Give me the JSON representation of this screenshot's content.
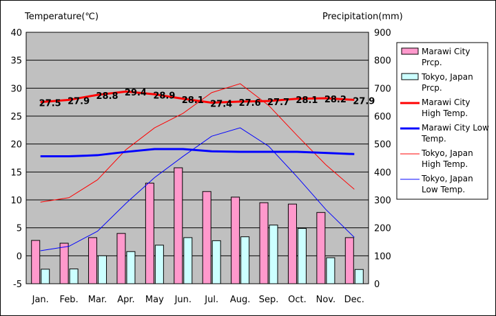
{
  "chart_data": {
    "type": "bar",
    "categories": [
      "Jan.",
      "Feb.",
      "Mar.",
      "Apr.",
      "May",
      "Jun.",
      "Jul.",
      "Aug.",
      "Sep.",
      "Oct.",
      "Nov.",
      "Dec."
    ],
    "y_left": {
      "label": "Temperature(℃)",
      "range": [
        -5,
        40
      ],
      "ticks": [
        "40",
        "35",
        "30",
        "25",
        "20",
        "15",
        "10",
        "5",
        "0",
        "-5"
      ]
    },
    "y_right": {
      "label": "Precipitation(mm)",
      "range": [
        0,
        900
      ],
      "ticks": [
        "900",
        "800",
        "700",
        "600",
        "500",
        "400",
        "300",
        "200",
        "100",
        "0"
      ]
    },
    "grid": true,
    "legend_position": "right",
    "series": [
      {
        "name": "Marawi City Prcp.",
        "kind": "bar",
        "axis": "right",
        "color": "#ff99cc",
        "values": [
          155,
          145,
          165,
          180,
          360,
          415,
          330,
          310,
          290,
          285,
          255,
          165
        ]
      },
      {
        "name": "Tokyo, Japan Prcp.",
        "kind": "bar",
        "axis": "right",
        "color": "#ccffff",
        "values": [
          52,
          53,
          100,
          115,
          138,
          165,
          154,
          168,
          210,
          198,
          93,
          51
        ]
      },
      {
        "name": "Marawi City High Temp.",
        "kind": "line",
        "axis": "left",
        "color": "#ff0000",
        "width": 3,
        "values": [
          27.5,
          27.9,
          28.8,
          29.4,
          28.9,
          28.1,
          27.4,
          27.6,
          27.7,
          28.1,
          28.2,
          27.9
        ],
        "labels": [
          "27.5",
          "27.9",
          "28.8",
          "29.4",
          "28.9",
          "28.1",
          "27.4",
          "27.6",
          "27.7",
          "28.1",
          "28.2",
          "27.9"
        ]
      },
      {
        "name": "Marawi City Low Temp.",
        "kind": "line",
        "axis": "left",
        "color": "#0000ff",
        "width": 3,
        "values": [
          17.8,
          17.8,
          18.0,
          18.6,
          19.1,
          19.1,
          18.7,
          18.6,
          18.6,
          18.6,
          18.4,
          18.2
        ]
      },
      {
        "name": "Tokyo, Japan High Temp.",
        "kind": "line",
        "axis": "left",
        "color": "#ff0000",
        "width": 1,
        "values": [
          9.6,
          10.4,
          13.6,
          19.0,
          22.9,
          25.5,
          29.2,
          30.8,
          26.9,
          21.5,
          16.3,
          11.9
        ]
      },
      {
        "name": "Tokyo, Japan Low Temp.",
        "kind": "line",
        "axis": "left",
        "color": "#0000ff",
        "width": 1,
        "values": [
          0.9,
          1.7,
          4.4,
          9.4,
          14.0,
          17.8,
          21.4,
          22.9,
          19.6,
          14.1,
          8.3,
          3.3
        ]
      }
    ]
  },
  "legend": [
    {
      "lines": [
        "Marawi City",
        "Prcp."
      ],
      "swatch": "bar",
      "color": "#ff99cc"
    },
    {
      "lines": [
        "Tokyo, Japan",
        "Prcp."
      ],
      "swatch": "bar",
      "color": "#ccffff"
    },
    {
      "lines": [
        "Marawi City",
        "High Temp."
      ],
      "swatch": "line",
      "color": "#ff0000",
      "width": 3
    },
    {
      "lines": [
        "Marawi City Low",
        "Temp."
      ],
      "swatch": "line",
      "color": "#0000ff",
      "width": 3
    },
    {
      "lines": [
        "Tokyo, Japan",
        "High Temp."
      ],
      "swatch": "line",
      "color": "#ff0000",
      "width": 1
    },
    {
      "lines": [
        "Tokyo, Japan",
        "Low Temp."
      ],
      "swatch": "line",
      "color": "#0000ff",
      "width": 1
    }
  ]
}
